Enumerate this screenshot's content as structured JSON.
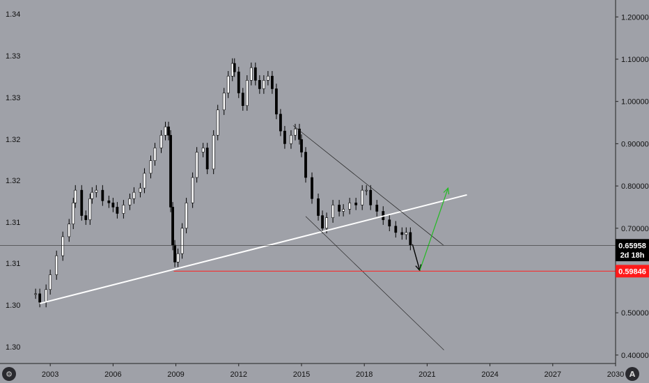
{
  "chart_data": {
    "type": "candlestick",
    "background": "#9fa1a8",
    "grid": false,
    "left_axis": {
      "ticks": [
        "1.34",
        "1.33",
        "1.33",
        "1.32",
        "1.32",
        "1.31",
        "1.31",
        "1.30",
        "1.30"
      ]
    },
    "right_axis": {
      "ylim": [
        0.38,
        1.24
      ],
      "ticks": [
        "1.20000",
        "1.10000",
        "1.00000",
        "0.90000",
        "0.80000",
        "0.70000",
        "0.60000",
        "0.50000",
        "0.40000"
      ]
    },
    "x_axis": {
      "xlim": [
        2000.6,
        2030.0
      ],
      "ticks": [
        "2003",
        "2006",
        "2009",
        "2012",
        "2015",
        "2018",
        "2021",
        "2024",
        "2027",
        "2030"
      ]
    },
    "series": [
      {
        "type": "candlestick",
        "color": "#000000",
        "points": [
          [
            2002.3,
            0.545
          ],
          [
            2002.5,
            0.525
          ],
          [
            2002.8,
            0.555
          ],
          [
            2003.0,
            0.59
          ],
          [
            2003.3,
            0.635
          ],
          [
            2003.6,
            0.68
          ],
          [
            2003.9,
            0.71
          ],
          [
            2004.1,
            0.76
          ],
          [
            2004.2,
            0.79
          ],
          [
            2004.5,
            0.73
          ],
          [
            2004.7,
            0.72
          ],
          [
            2004.9,
            0.77
          ],
          [
            2005.0,
            0.785
          ],
          [
            2005.2,
            0.79
          ],
          [
            2005.5,
            0.765
          ],
          [
            2005.8,
            0.76
          ],
          [
            2006.0,
            0.75
          ],
          [
            2006.2,
            0.735
          ],
          [
            2006.5,
            0.755
          ],
          [
            2006.8,
            0.77
          ],
          [
            2007.0,
            0.785
          ],
          [
            2007.3,
            0.795
          ],
          [
            2007.5,
            0.83
          ],
          [
            2007.8,
            0.86
          ],
          [
            2008.0,
            0.89
          ],
          [
            2008.3,
            0.92
          ],
          [
            2008.5,
            0.94
          ],
          [
            2008.65,
            0.92
          ],
          [
            2008.75,
            0.75
          ],
          [
            2008.85,
            0.66
          ],
          [
            2008.95,
            0.62
          ],
          [
            2009.1,
            0.64
          ],
          [
            2009.3,
            0.7
          ],
          [
            2009.5,
            0.76
          ],
          [
            2009.8,
            0.82
          ],
          [
            2010.0,
            0.88
          ],
          [
            2010.3,
            0.89
          ],
          [
            2010.5,
            0.84
          ],
          [
            2010.8,
            0.92
          ],
          [
            2011.0,
            0.98
          ],
          [
            2011.3,
            1.02
          ],
          [
            2011.5,
            1.06
          ],
          [
            2011.7,
            1.09
          ],
          [
            2011.8,
            1.07
          ],
          [
            2012.0,
            1.02
          ],
          [
            2012.2,
            0.99
          ],
          [
            2012.4,
            1.05
          ],
          [
            2012.6,
            1.08
          ],
          [
            2012.8,
            1.05
          ],
          [
            2013.0,
            1.03
          ],
          [
            2013.2,
            1.05
          ],
          [
            2013.4,
            1.06
          ],
          [
            2013.6,
            1.03
          ],
          [
            2013.8,
            0.97
          ],
          [
            2014.0,
            0.93
          ],
          [
            2014.2,
            0.9
          ],
          [
            2014.5,
            0.92
          ],
          [
            2014.7,
            0.935
          ],
          [
            2014.9,
            0.91
          ],
          [
            2015.0,
            0.88
          ],
          [
            2015.2,
            0.82
          ],
          [
            2015.5,
            0.77
          ],
          [
            2015.8,
            0.73
          ],
          [
            2016.0,
            0.7
          ],
          [
            2016.2,
            0.725
          ],
          [
            2016.5,
            0.755
          ],
          [
            2016.8,
            0.74
          ],
          [
            2017.0,
            0.745
          ],
          [
            2017.3,
            0.76
          ],
          [
            2017.6,
            0.755
          ],
          [
            2017.9,
            0.79
          ],
          [
            2018.1,
            0.79
          ],
          [
            2018.3,
            0.755
          ],
          [
            2018.6,
            0.74
          ],
          [
            2018.9,
            0.72
          ],
          [
            2019.2,
            0.705
          ],
          [
            2019.5,
            0.69
          ],
          [
            2019.8,
            0.685
          ],
          [
            2020.0,
            0.69
          ],
          [
            2020.2,
            0.66
          ]
        ]
      },
      {
        "type": "line",
        "color": "#ffffff",
        "stroke_width": 2,
        "points": [
          [
            2002.5,
            0.522
          ],
          [
            2022.9,
            0.779
          ]
        ]
      },
      {
        "type": "line",
        "color": "#222222",
        "stroke_width": 0.7,
        "points": [
          [
            2014.6,
            0.943
          ],
          [
            2021.8,
            0.659
          ]
        ]
      },
      {
        "type": "line",
        "color": "#222222",
        "stroke_width": 0.7,
        "points": [
          [
            2015.2,
            0.728
          ],
          [
            2021.8,
            0.412
          ]
        ]
      },
      {
        "type": "arrow",
        "color": "#000000",
        "stroke_width": 1.4,
        "points": [
          [
            2020.3,
            0.662
          ],
          [
            2020.65,
            0.6
          ]
        ]
      },
      {
        "type": "arrow",
        "color": "#22bb22",
        "stroke_width": 1.2,
        "points": [
          [
            2020.65,
            0.6
          ],
          [
            2022.0,
            0.795
          ]
        ]
      },
      {
        "type": "hline",
        "color": "#ff2222",
        "stroke_width": 1,
        "y": 0.59846,
        "x_start": 2008.9
      },
      {
        "type": "hline",
        "color": "#333333",
        "stroke_width": 0.7,
        "y": 0.65958
      }
    ],
    "price_badges": [
      {
        "value": "0.65958",
        "y": 0.65958,
        "bg": "#000000",
        "fg": "#ffffff"
      },
      {
        "value": "2d 18h",
        "y": 0.6368,
        "bg": "#000000",
        "fg": "#ffffff"
      },
      {
        "value": "0.59846",
        "y": 0.59846,
        "bg": "#ff1a1a",
        "fg": "#ffffff"
      }
    ],
    "icons": [
      {
        "name": "settings-icon",
        "glyph": "⚙"
      },
      {
        "name": "tradingview-logo-icon",
        "glyph": "A"
      }
    ]
  }
}
